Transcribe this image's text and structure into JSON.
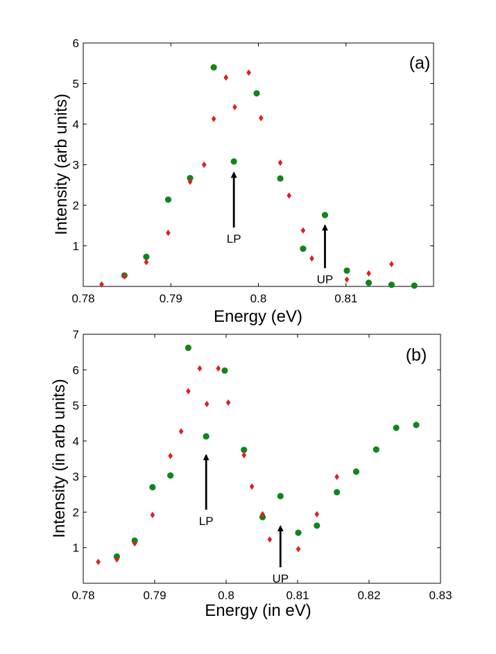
{
  "chart_data": [
    {
      "type": "scatter",
      "panel_label": "(a)",
      "xlabel": "Energy (eV)",
      "ylabel": "Intensity (arb units)",
      "xlim": [
        0.78,
        0.82
      ],
      "ylim": [
        0,
        6
      ],
      "xticks": [
        0.78,
        0.79,
        0.8,
        0.81
      ],
      "xtick_labels": [
        "0.78",
        "0.79",
        "0.8",
        "0.81"
      ],
      "yticks": [
        1,
        2,
        3,
        4,
        5,
        6
      ],
      "ytick_labels": [
        "1",
        "2",
        "3",
        "4",
        "5",
        "6"
      ],
      "grid": false,
      "series": [
        {
          "name": "green circles",
          "marker": "circle",
          "color": "#12851a",
          "points": [
            [
              0.7847,
              0.27
            ],
            [
              0.7872,
              0.73
            ],
            [
              0.7897,
              2.14
            ],
            [
              0.7922,
              2.67
            ],
            [
              0.7949,
              5.4
            ],
            [
              0.7972,
              3.08
            ],
            [
              0.7998,
              4.76
            ],
            [
              0.8025,
              2.66
            ],
            [
              0.8051,
              0.93
            ],
            [
              0.8076,
              1.76
            ],
            [
              0.8101,
              0.39
            ],
            [
              0.8126,
              0.09
            ],
            [
              0.8152,
              0.04
            ],
            [
              0.8178,
              0.02
            ]
          ]
        },
        {
          "name": "red diamonds",
          "marker": "diamond",
          "color": "#e21e1e",
          "points": [
            [
              0.7821,
              0.05
            ],
            [
              0.7847,
              0.25
            ],
            [
              0.7872,
              0.6
            ],
            [
              0.7897,
              1.32
            ],
            [
              0.7922,
              2.58
            ],
            [
              0.7938,
              3.0
            ],
            [
              0.7949,
              4.13
            ],
            [
              0.7963,
              5.15
            ],
            [
              0.7973,
              4.42
            ],
            [
              0.7989,
              5.27
            ],
            [
              0.8003,
              4.15
            ],
            [
              0.8025,
              3.05
            ],
            [
              0.8035,
              2.24
            ],
            [
              0.8051,
              1.38
            ],
            [
              0.8061,
              0.69
            ],
            [
              0.8101,
              0.17
            ],
            [
              0.8126,
              0.32
            ],
            [
              0.8152,
              0.55
            ]
          ]
        }
      ],
      "annotations": [
        {
          "text": "LP",
          "arrow_tail": [
            0.7972,
            1.45
          ],
          "arrow_head": [
            0.7972,
            2.8
          ]
        },
        {
          "text": "UP",
          "arrow_tail": [
            0.8076,
            0.45
          ],
          "arrow_head": [
            0.8076,
            1.5
          ]
        }
      ]
    },
    {
      "type": "scatter",
      "panel_label": "(b)",
      "xlabel": "Energy (in eV)",
      "ylabel": "Intensity (in arb units)",
      "xlim": [
        0.78,
        0.83
      ],
      "ylim": [
        0,
        7
      ],
      "xticks": [
        0.78,
        0.79,
        0.8,
        0.81,
        0.82,
        0.83
      ],
      "xtick_labels": [
        "0.78",
        "0.79",
        "0.8",
        "0.81",
        "0.82",
        "0.83"
      ],
      "yticks": [
        1,
        2,
        3,
        4,
        5,
        6,
        7
      ],
      "ytick_labels": [
        "1",
        "2",
        "3",
        "4",
        "5",
        "6",
        "7"
      ],
      "grid": false,
      "series": [
        {
          "name": "green circles",
          "marker": "circle",
          "color": "#12851a",
          "points": [
            [
              0.7847,
              0.75
            ],
            [
              0.7872,
              1.2
            ],
            [
              0.7897,
              2.7
            ],
            [
              0.7922,
              3.03
            ],
            [
              0.7947,
              6.62
            ],
            [
              0.7972,
              4.13
            ],
            [
              0.7998,
              5.98
            ],
            [
              0.8025,
              3.75
            ],
            [
              0.8051,
              1.86
            ],
            [
              0.8076,
              2.45
            ],
            [
              0.8101,
              1.42
            ],
            [
              0.8127,
              1.62
            ],
            [
              0.8155,
              2.56
            ],
            [
              0.8182,
              3.14
            ],
            [
              0.821,
              3.76
            ],
            [
              0.8238,
              4.37
            ],
            [
              0.8266,
              4.45
            ]
          ]
        },
        {
          "name": "red diamonds",
          "marker": "diamond",
          "color": "#e21e1e",
          "points": [
            [
              0.7821,
              0.6
            ],
            [
              0.7847,
              0.67
            ],
            [
              0.7872,
              1.12
            ],
            [
              0.7897,
              1.92
            ],
            [
              0.7922,
              3.58
            ],
            [
              0.7937,
              4.27
            ],
            [
              0.7947,
              5.4
            ],
            [
              0.7963,
              6.04
            ],
            [
              0.7973,
              5.04
            ],
            [
              0.7989,
              6.04
            ],
            [
              0.8003,
              5.08
            ],
            [
              0.8025,
              3.6
            ],
            [
              0.8036,
              2.72
            ],
            [
              0.8051,
              1.94
            ],
            [
              0.8061,
              1.23
            ],
            [
              0.8101,
              0.96
            ],
            [
              0.8127,
              1.94
            ],
            [
              0.8155,
              2.99
            ]
          ]
        }
      ],
      "annotations": [
        {
          "text": "LP",
          "arrow_tail": [
            0.7972,
            2.07
          ],
          "arrow_head": [
            0.7972,
            3.6
          ]
        },
        {
          "text": "UP",
          "arrow_tail": [
            0.8076,
            0.45
          ],
          "arrow_head": [
            0.8076,
            1.6
          ]
        }
      ]
    }
  ]
}
